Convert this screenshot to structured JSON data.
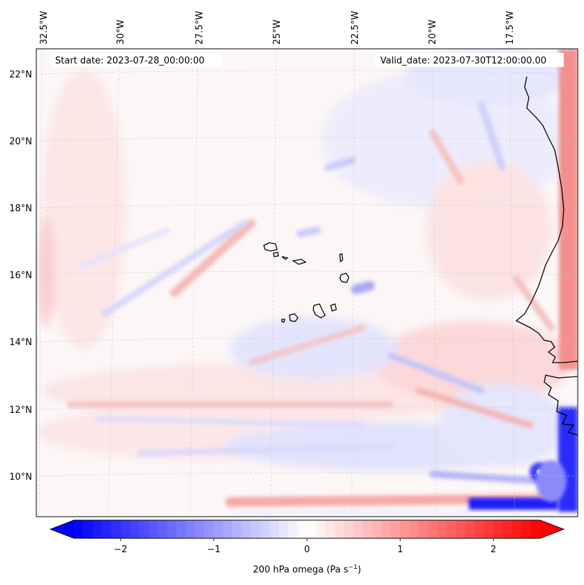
{
  "map": {
    "start_date_text": "Start date: 2023-07-28_00:00:00",
    "valid_date_text": "Valid_date: 2023-07-30T12:00:00.00",
    "longitude_ticks": [
      "32.5°W",
      "30°W",
      "27.5°W",
      "25°W",
      "22.5°W",
      "20°W",
      "17.5°W"
    ],
    "latitude_ticks": [
      "22°N",
      "20°N",
      "18°N",
      "16°N",
      "14°N",
      "12°N",
      "10°N"
    ],
    "field": "200 hPa omega",
    "coastline_color": "#000000",
    "gridline_style": "dashed light grey"
  },
  "colorbar": {
    "label_main": "200 hPa omega (Pa s",
    "label_unit_sup": "−1",
    "label_close": ")",
    "ticks": [
      "−2",
      "−1",
      "0",
      "1",
      "2"
    ],
    "tick_values": [
      -2,
      -1,
      0,
      1,
      2
    ],
    "range": [
      -2.5,
      2.5
    ],
    "colormap": "bwr",
    "min_color": "#0000ff",
    "mid_color": "#ffffff",
    "max_color": "#ff0000",
    "extend": "both"
  }
}
